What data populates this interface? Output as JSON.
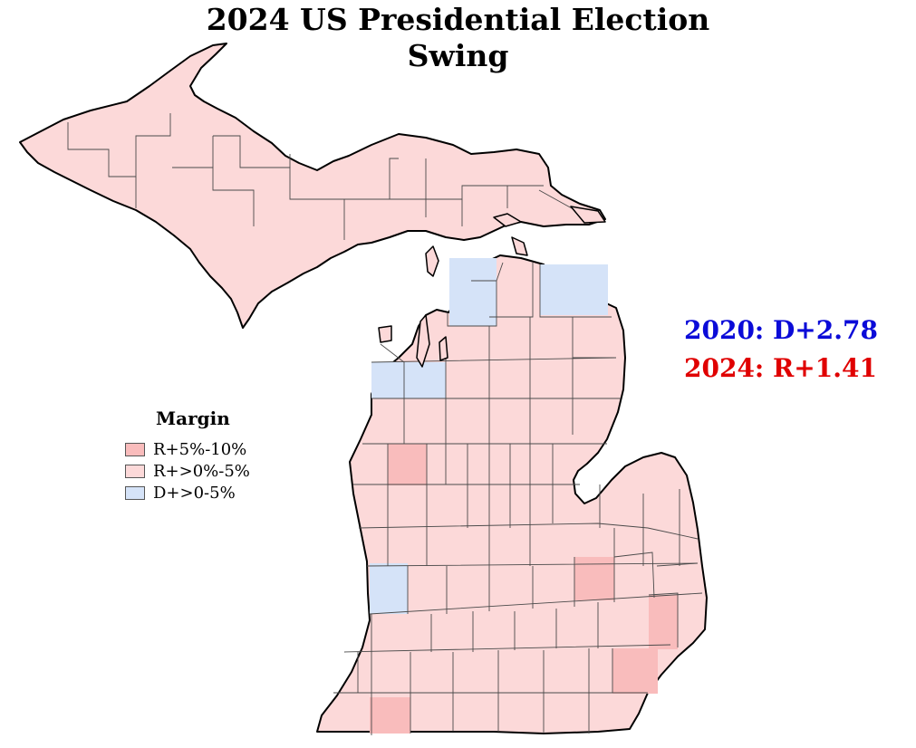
{
  "title": {
    "line1": "2024 US Presidential Election",
    "line2": "Swing"
  },
  "results": {
    "r2020": {
      "text": "2020: D+2.78",
      "color": "#0b0bd8"
    },
    "r2024": {
      "text": "2024: R+1.41",
      "color": "#e00000"
    }
  },
  "legend": {
    "title": "Margin",
    "items": [
      {
        "label": "R+5%-10%",
        "color": "#f9bcbc"
      },
      {
        "label": "R+>0%-5%",
        "color": "#fcd9d9"
      },
      {
        "label": "D+>0-5%",
        "color": "#d5e3f8"
      }
    ]
  },
  "colors": {
    "border": "#000000",
    "county_line": "#4a4a4a",
    "background": "#ffffff"
  }
}
